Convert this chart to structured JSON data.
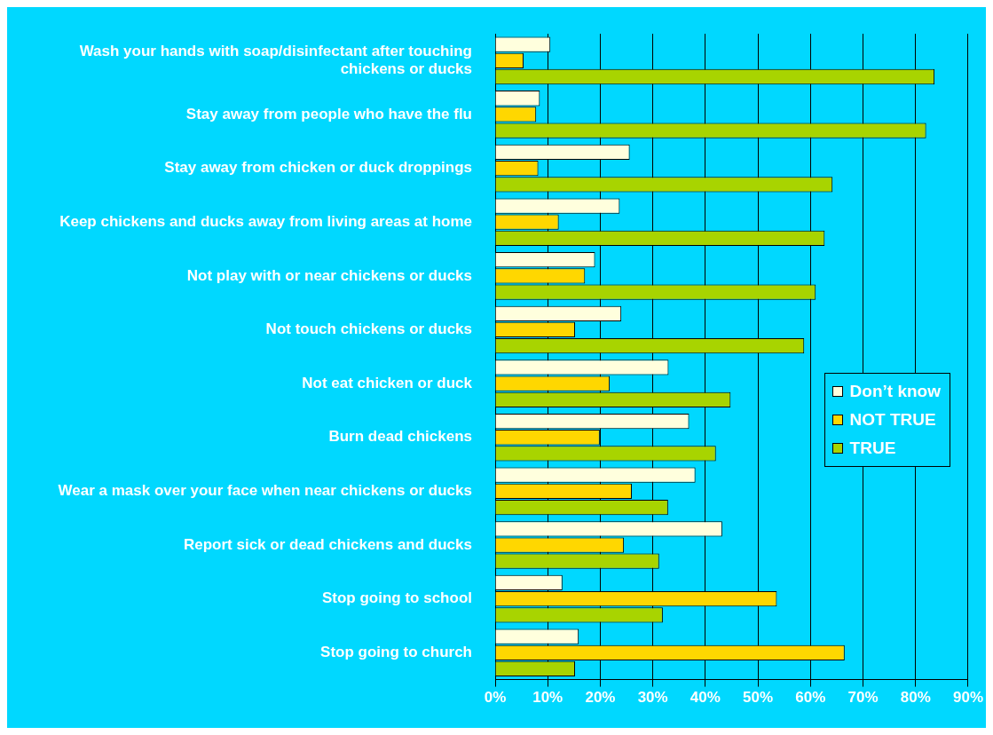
{
  "chart_data": {
    "type": "bar",
    "orientation": "horizontal",
    "categories": [
      "Wash your hands with soap/disinfectant after touching chickens or ducks",
      "Stay away from people who have the flu",
      "Stay away from chicken or duck droppings",
      "Keep chickens and ducks away from living areas at home",
      "Not play with or near chickens or ducks",
      "Not touch chickens or ducks",
      "Not eat chicken or duck",
      "Burn dead chickens",
      "Wear a mask over your face when near chickens or ducks",
      "Report sick or dead chickens and ducks",
      "Stop going to school",
      "Stop going to church"
    ],
    "series": [
      {
        "name": "Don’t know",
        "color": "#ffffdd",
        "values": [
          10.5,
          8.5,
          25.6,
          23.7,
          19,
          24,
          33,
          36.9,
          38.1,
          43.2,
          12.8,
          15.9
        ]
      },
      {
        "name": "NOT TRUE",
        "color": "#ffd700",
        "values": [
          5.4,
          7.8,
          8.2,
          12.1,
          17.1,
          15.2,
          21.8,
          19.9,
          26,
          24.5,
          53.6,
          66.5
        ]
      },
      {
        "name": "TRUE",
        "color": "#a8d400",
        "values": [
          83.6,
          82,
          64.2,
          62.7,
          61,
          58.8,
          44.8,
          42,
          32.9,
          31.2,
          31.9,
          15.2
        ]
      }
    ],
    "xlim": [
      0,
      90
    ],
    "xticks": [
      {
        "value": 0,
        "label": "0%"
      },
      {
        "value": 10,
        "label": "10%"
      },
      {
        "value": 20,
        "label": "20%"
      },
      {
        "value": 30,
        "label": "30%"
      },
      {
        "value": 40,
        "label": "40%"
      },
      {
        "value": 50,
        "label": "50%"
      },
      {
        "value": 60,
        "label": "60%"
      },
      {
        "value": 70,
        "label": "70%"
      },
      {
        "value": 80,
        "label": "80%"
      },
      {
        "value": 90,
        "label": "90%"
      }
    ],
    "grid": "x",
    "legend": "right"
  }
}
